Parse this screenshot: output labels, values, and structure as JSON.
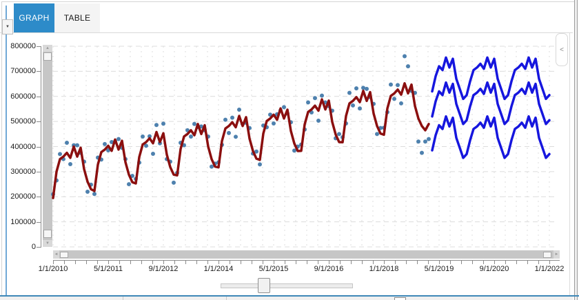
{
  "tabs": {
    "graph_label": "GRAPH",
    "table_label": "TABLE"
  },
  "icons": {
    "dropdown": "▼",
    "collapse_left": "<",
    "scroll_up": "▲",
    "scroll_down": "▼",
    "scroll_left": "◄",
    "scroll_right": "►"
  },
  "colors": {
    "tab_active_bg": "#2d8bc9",
    "accent_left": "#6fa8d6",
    "bottom_rule": "#3e88b8",
    "fitted_line": "#8b0f0f",
    "forecast_line": "#1616de",
    "scatter_dot": "#4e81ae",
    "grid": "#dcdcdc"
  },
  "chart_data": {
    "type": "line",
    "title": "",
    "xlabel": "",
    "ylabel": "",
    "grid": true,
    "legend": "none",
    "y_axis": {
      "min": 0,
      "max": 800000,
      "tick_step": 100000,
      "tick_labels": [
        "800000",
        "700000",
        "600000",
        "500000",
        "400000",
        "300000",
        "200000",
        "100000",
        "0"
      ]
    },
    "x_axis": {
      "start": "1/1/2010",
      "end": "1/1/2022",
      "months_per_label": 16,
      "tick_labels": [
        "1/1/2010",
        "5/1/2011",
        "9/1/2012",
        "1/1/2014",
        "5/1/2015",
        "9/1/2016",
        "1/1/2018",
        "5/1/2019",
        "9/1/2020",
        "1/1/2022"
      ]
    },
    "series": [
      {
        "name": "actual-scatter",
        "type": "scatter",
        "color": "#4e81ae",
        "start_month": 0,
        "values": [
          210000,
          265000,
          370000,
          350000,
          415000,
          330000,
          405000,
          405000,
          375000,
          340000,
          220000,
          248000,
          211000,
          356000,
          348000,
          410000,
          385000,
          418000,
          420000,
          430000,
          395000,
          350000,
          250000,
          283000,
          271000,
          336000,
          440000,
          403000,
          441000,
          371000,
          486000,
          413000,
          491000,
          350000,
          340000,
          256000,
          295000,
          415000,
          405000,
          465000,
          440000,
          490000,
          478000,
          480000,
          465000,
          440000,
          320000,
          332000,
          337000,
          407000,
          507000,
          454000,
          515000,
          439000,
          547000,
          490000,
          495000,
          474000,
          372000,
          380000,
          329000,
          484000,
          477000,
          527000,
          492000,
          529000,
          544000,
          557000,
          532000,
          497000,
          384000,
          400000,
          408000,
          468000,
          576000,
          536000,
          593000,
          503000,
          603000,
          576000,
          561000,
          543000,
          433000,
          450000,
          437000,
          492000,
          614000,
          564000,
          632000,
          552000,
          634000,
          630000,
          597000,
          570000,
          450000,
          474000,
          475000,
          537000,
          647000,
          590000,
          645000,
          572000,
          760000,
          720000,
          622000,
          614000,
          420000,
          375000,
          420000,
          430000
        ]
      },
      {
        "name": "fitted-line",
        "type": "line",
        "color": "#8b0f0f",
        "width": 3.5,
        "start_month": 0,
        "values": [
          195000,
          300000,
          350000,
          360000,
          375000,
          355000,
          400000,
          360000,
          395000,
          310000,
          260000,
          230000,
          223000,
          328000,
          378000,
          388000,
          403000,
          383000,
          428000,
          388000,
          423000,
          338000,
          288000,
          258000,
          253000,
          358000,
          408000,
          418000,
          433000,
          413000,
          458000,
          418000,
          453000,
          368000,
          318000,
          288000,
          285000,
          390000,
          440000,
          450000,
          465000,
          445000,
          490000,
          450000,
          485000,
          400000,
          350000,
          320000,
          317000,
          422000,
          472000,
          482000,
          497000,
          477000,
          522000,
          482000,
          517000,
          432000,
          382000,
          352000,
          347000,
          452000,
          502000,
          512000,
          527000,
          507000,
          552000,
          512000,
          547000,
          462000,
          412000,
          382000,
          383000,
          488000,
          538000,
          548000,
          563000,
          543000,
          588000,
          548000,
          583000,
          498000,
          448000,
          418000,
          417000,
          522000,
          572000,
          582000,
          597000,
          577000,
          622000,
          582000,
          617000,
          532000,
          482000,
          452000,
          447000,
          552000,
          602000,
          612000,
          627000,
          607000,
          652000,
          612000,
          647000,
          562000,
          512000,
          482000,
          465000,
          490000
        ]
      },
      {
        "name": "forecast-upper",
        "type": "line",
        "color": "#1616de",
        "width": 3.5,
        "start_month": 110,
        "values": [
          620000,
          680000,
          720000,
          705000,
          755000,
          715000,
          750000,
          670000,
          630000,
          590000,
          605000,
          660000,
          705000,
          715000,
          730000,
          710000,
          755000,
          715000,
          750000,
          670000,
          630000,
          590000,
          605000,
          660000,
          705000,
          715000,
          730000,
          710000,
          755000,
          715000,
          750000,
          670000,
          630000,
          590000,
          605000
        ]
      },
      {
        "name": "forecast-mid",
        "type": "line",
        "color": "#1616de",
        "width": 3.5,
        "start_month": 110,
        "values": [
          520000,
          580000,
          620000,
          605000,
          655000,
          615000,
          650000,
          570000,
          530000,
          490000,
          505000,
          560000,
          605000,
          615000,
          630000,
          610000,
          655000,
          615000,
          650000,
          570000,
          530000,
          490000,
          505000,
          560000,
          605000,
          615000,
          630000,
          610000,
          655000,
          615000,
          650000,
          570000,
          530000,
          490000,
          505000
        ]
      },
      {
        "name": "forecast-lower",
        "type": "line",
        "color": "#1616de",
        "width": 3.5,
        "start_month": 110,
        "values": [
          385000,
          445000,
          485000,
          470000,
          520000,
          480000,
          515000,
          435000,
          395000,
          355000,
          370000,
          425000,
          470000,
          480000,
          495000,
          475000,
          520000,
          480000,
          515000,
          435000,
          395000,
          355000,
          370000,
          425000,
          470000,
          480000,
          495000,
          475000,
          520000,
          480000,
          515000,
          435000,
          395000,
          355000,
          370000
        ]
      }
    ]
  }
}
